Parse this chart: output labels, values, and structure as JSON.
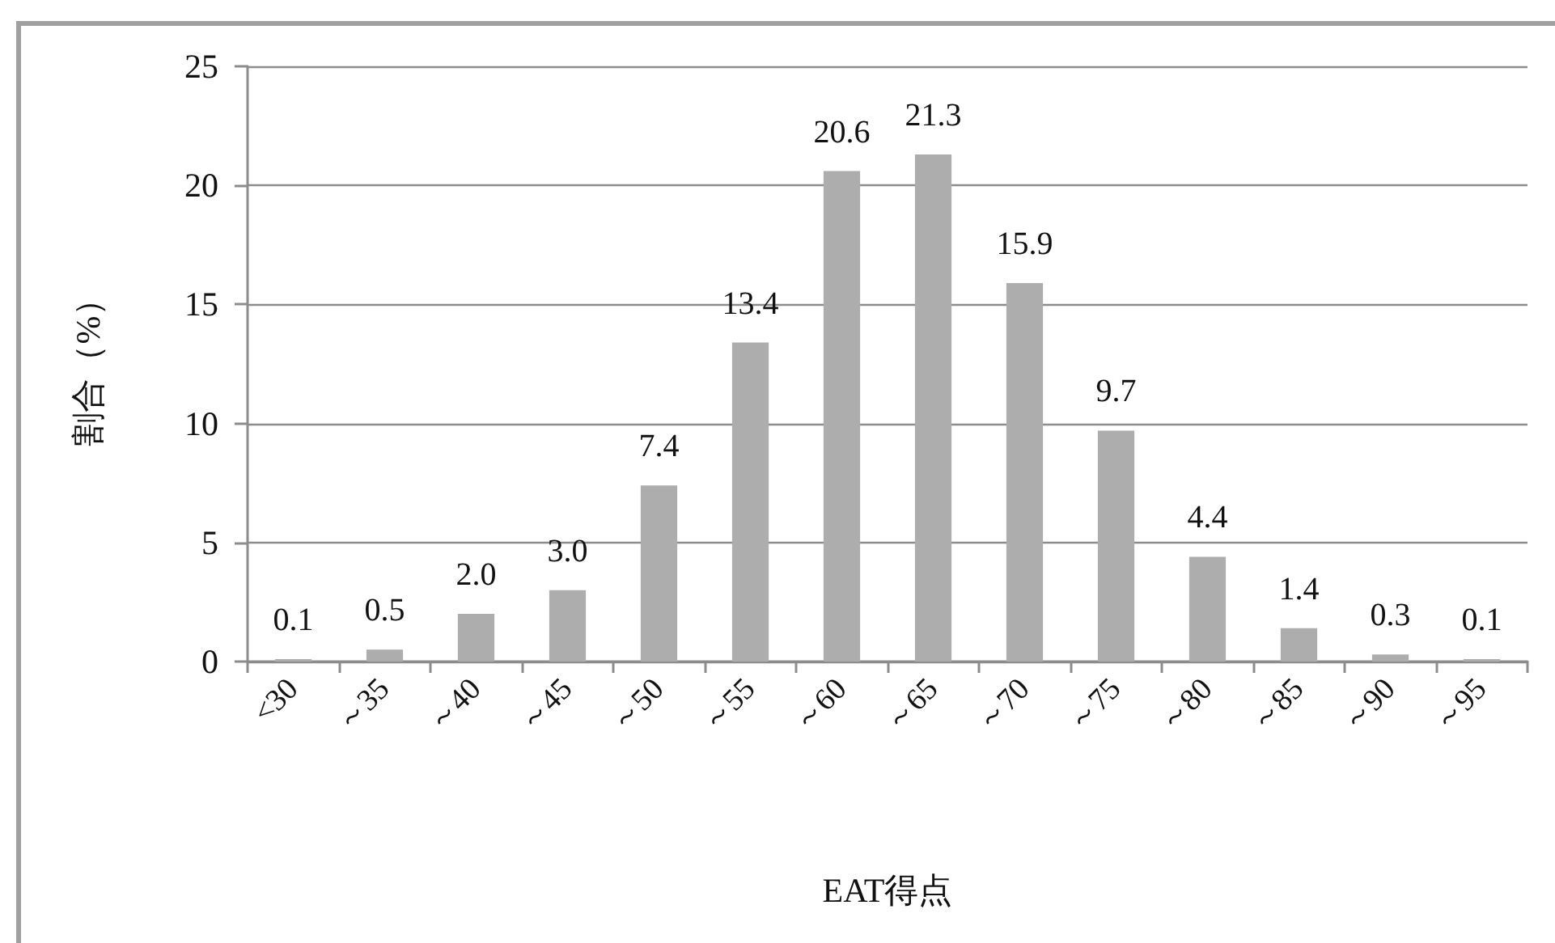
{
  "chart_data": {
    "type": "bar",
    "xlabel": "EAT得点",
    "ylabel": "割合（%）",
    "categories": [
      "<30",
      "～35",
      "～40",
      "～45",
      "～50",
      "～55",
      "～60",
      "～65",
      "～70",
      "～75",
      "～80",
      "～85",
      "～90",
      "～95"
    ],
    "values": [
      0.1,
      0.5,
      2.0,
      3.0,
      7.4,
      13.4,
      20.6,
      21.3,
      15.9,
      9.7,
      4.4,
      1.4,
      0.3,
      0.1
    ],
    "value_labels": [
      "0.1",
      "0.5",
      "2.0",
      "3.0",
      "7.4",
      "13.4",
      "20.6",
      "21.3",
      "15.9",
      "9.7",
      "4.4",
      "1.4",
      "0.3",
      "0.1"
    ],
    "color": "#adadad",
    "ylim": [
      0,
      25
    ],
    "yticks": [
      0,
      5,
      10,
      15,
      20,
      25
    ],
    "grid": "y"
  }
}
